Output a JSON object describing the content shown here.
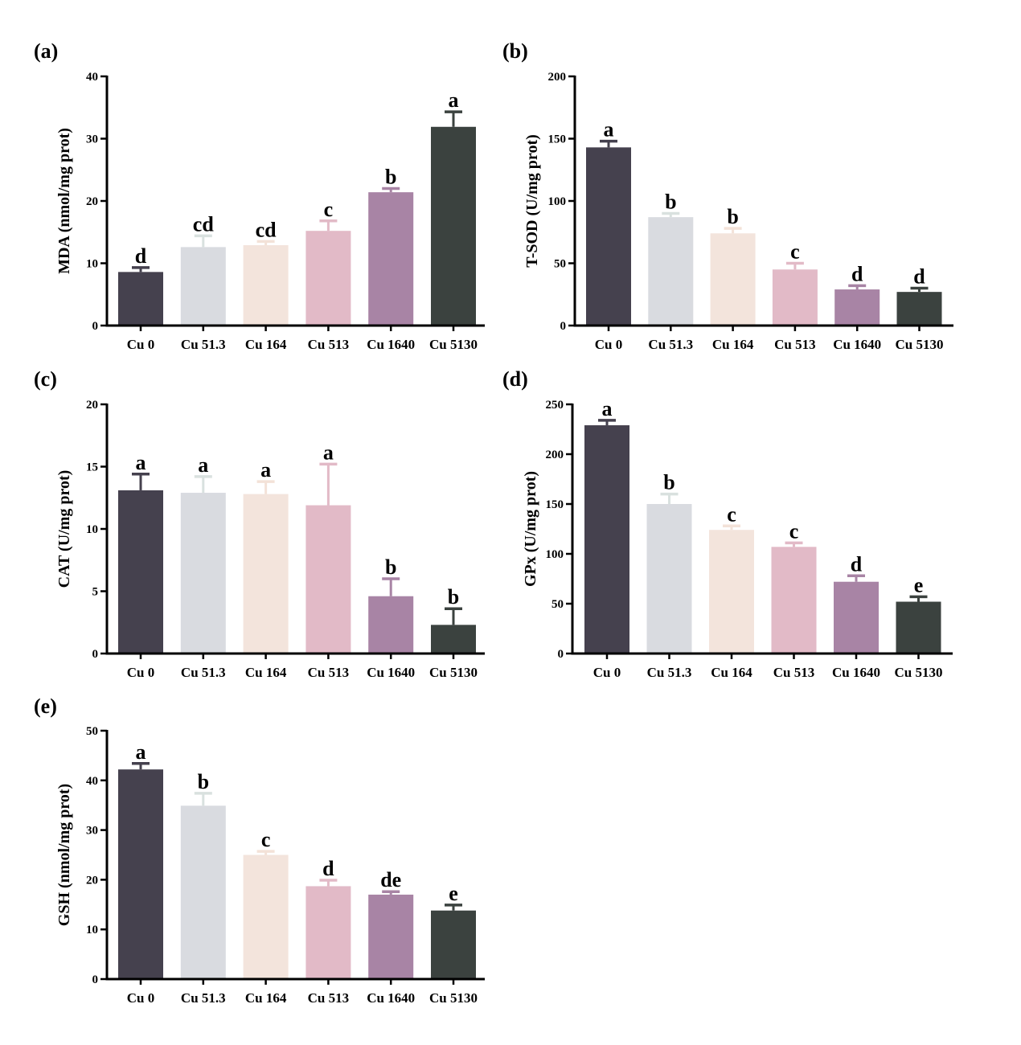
{
  "chart_data": [
    {
      "type": "bar",
      "panel": "(a)",
      "categories": [
        "Cu 0",
        "Cu 51.3",
        "Cu 164",
        "Cu 513",
        "Cu 1640",
        "Cu 5130"
      ],
      "values": [
        8.6,
        12.6,
        12.9,
        15.2,
        21.4,
        31.9
      ],
      "errors": [
        0.7,
        1.8,
        0.6,
        1.6,
        0.6,
        2.4
      ],
      "significance": [
        "d",
        "cd",
        "cd",
        "c",
        "b",
        "a"
      ],
      "ylabel": "MDA (nmol/mg prot)",
      "ylim": [
        0,
        40
      ],
      "yticks": [
        0,
        10,
        20,
        30,
        40
      ]
    },
    {
      "type": "bar",
      "panel": "(b)",
      "categories": [
        "Cu 0",
        "Cu 51.3",
        "Cu 164",
        "Cu 513",
        "Cu 1640",
        "Cu 5130"
      ],
      "values": [
        143,
        87,
        74,
        45,
        29,
        27
      ],
      "errors": [
        5,
        3,
        4,
        5,
        3,
        3
      ],
      "significance": [
        "a",
        "b",
        "b",
        "c",
        "d",
        "d"
      ],
      "ylabel": "T-SOD (U/mg prot)",
      "ylim": [
        0,
        200
      ],
      "yticks": [
        0,
        50,
        100,
        150,
        200
      ]
    },
    {
      "type": "bar",
      "panel": "(c)",
      "categories": [
        "Cu 0",
        "Cu 51.3",
        "Cu 164",
        "Cu 513",
        "Cu 1640",
        "Cu 5130"
      ],
      "values": [
        13.1,
        12.9,
        12.8,
        11.9,
        4.6,
        2.3
      ],
      "errors": [
        1.3,
        1.3,
        1.0,
        3.3,
        1.4,
        1.3
      ],
      "significance": [
        "a",
        "a",
        "a",
        "a",
        "b",
        "b"
      ],
      "ylabel": "CAT (U/mg prot)",
      "ylim": [
        0,
        20
      ],
      "yticks": [
        0,
        5,
        10,
        15,
        20
      ]
    },
    {
      "type": "bar",
      "panel": "(d)",
      "categories": [
        "Cu 0",
        "Cu 51.3",
        "Cu 164",
        "Cu 513",
        "Cu 1640",
        "Cu 5130"
      ],
      "values": [
        229,
        150,
        124,
        107,
        72,
        52
      ],
      "errors": [
        5,
        10,
        4,
        4,
        6,
        5
      ],
      "significance": [
        "a",
        "b",
        "c",
        "c",
        "d",
        "e"
      ],
      "ylabel": "GPx (U/mg prot)",
      "ylim": [
        0,
        250
      ],
      "yticks": [
        0,
        50,
        100,
        150,
        200,
        250
      ]
    },
    {
      "type": "bar",
      "panel": "(e)",
      "categories": [
        "Cu 0",
        "Cu 51.3",
        "Cu 164",
        "Cu 513",
        "Cu 1640",
        "Cu 5130"
      ],
      "values": [
        42.2,
        34.9,
        25.0,
        18.7,
        17.0,
        13.8
      ],
      "errors": [
        1.2,
        2.5,
        0.7,
        1.2,
        0.6,
        1.1
      ],
      "significance": [
        "a",
        "b",
        "c",
        "d",
        "de",
        "e"
      ],
      "ylabel": "GSH (nmol/mg prot)",
      "ylim": [
        0,
        50
      ],
      "yticks": [
        0,
        10,
        20,
        30,
        40,
        50
      ]
    }
  ],
  "colors": [
    "#45414e",
    "#d9dbe0",
    "#f3e4dc",
    "#e2bac7",
    "#a884a5",
    "#3b423f"
  ],
  "errorbar_colors": [
    "#45414e",
    "#d9e1df",
    "#f3e2d8",
    "#e2bac7",
    "#a884a5",
    "#3b423f"
  ]
}
